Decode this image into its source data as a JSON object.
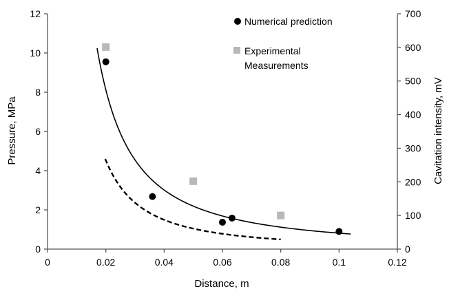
{
  "chart_data": {
    "type": "scatter",
    "xlabel": "Distance, m",
    "ylabel": "Pressure, MPa",
    "y2label": "Cavitation intensity, mV",
    "xlim": [
      0,
      0.12
    ],
    "ylim": [
      0,
      12
    ],
    "y2lim": [
      0,
      700
    ],
    "x_ticks": [
      "0",
      "0.02",
      "0.04",
      "0.06",
      "0.08",
      "0.1",
      "0.12"
    ],
    "y_ticks": [
      "0",
      "2",
      "4",
      "6",
      "8",
      "10",
      "12"
    ],
    "y2_ticks": [
      "0",
      "100",
      "200",
      "300",
      "400",
      "500",
      "600",
      "700"
    ],
    "grid": false,
    "legend_position": "top-right",
    "series": [
      {
        "name": "Numerical prediction",
        "axis": "left",
        "marker": "circle",
        "color": "#000000",
        "points": [
          [
            0.02,
            9.55
          ],
          [
            0.036,
            2.68
          ],
          [
            0.06,
            1.37
          ],
          [
            0.0633,
            1.58
          ],
          [
            0.1,
            0.9
          ]
        ]
      },
      {
        "name": "Experimental Measurements",
        "axis": "right",
        "marker": "square",
        "color": "#b8b8b8",
        "points": [
          [
            0.02,
            601
          ],
          [
            0.05,
            202
          ],
          [
            0.08,
            100
          ]
        ]
      }
    ],
    "trendlines": [
      {
        "of": "Numerical prediction",
        "style": "solid",
        "color": "#000000",
        "x_range": [
          0.017,
          0.104
        ],
        "model": "power",
        "coef": 0.0302,
        "exponent": -1.43
      },
      {
        "of": "Experimental Measurements",
        "style": "dashed",
        "color": "#000000",
        "x_range": [
          0.0198,
          0.08
        ],
        "model": "power",
        "coef": 0.505,
        "exponent": -1.6
      }
    ]
  }
}
